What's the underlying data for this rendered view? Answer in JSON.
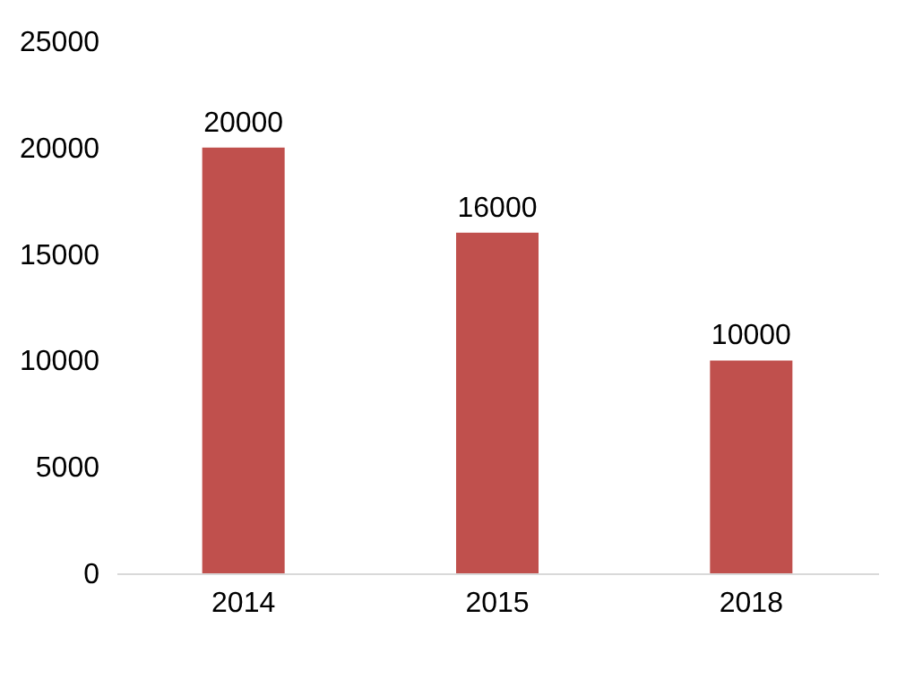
{
  "chart_data": {
    "type": "bar",
    "categories": [
      "2014",
      "2015",
      "2018"
    ],
    "values": [
      20000,
      16000,
      10000
    ],
    "color": "#c0504d",
    "ylim": [
      0,
      25000
    ],
    "yticks": [
      0,
      5000,
      10000,
      15000,
      20000,
      25000
    ],
    "grid": false,
    "data_labels": true
  }
}
